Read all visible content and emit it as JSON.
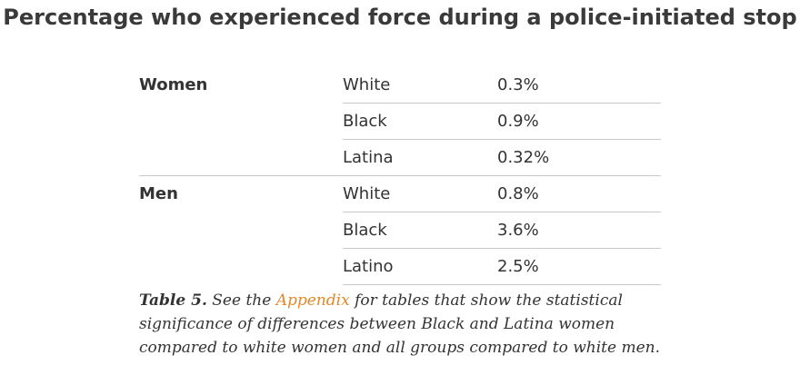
{
  "title": "Percentage who experienced force during a police-initiated stop",
  "table": {
    "groups": [
      {
        "name": "Women",
        "rows": [
          {
            "race": "White",
            "value": "0.3%"
          },
          {
            "race": "Black",
            "value": "0.9%"
          },
          {
            "race": "Latina",
            "value": "0.32%"
          }
        ]
      },
      {
        "name": "Men",
        "rows": [
          {
            "race": "White",
            "value": "0.8%"
          },
          {
            "race": "Black",
            "value": "3.6%"
          },
          {
            "race": "Latino",
            "value": "2.5%"
          }
        ]
      }
    ]
  },
  "caption": {
    "label": "Table 5.",
    "pre_link": " See the ",
    "link_text": "Appendix",
    "post_link": " for tables that show the statistical significance of differences between Black and Latina women compared to white women and all groups compared to white men."
  },
  "colors": {
    "link": "#e2892b",
    "divider": "#c8c8c8",
    "text": "#333333"
  }
}
